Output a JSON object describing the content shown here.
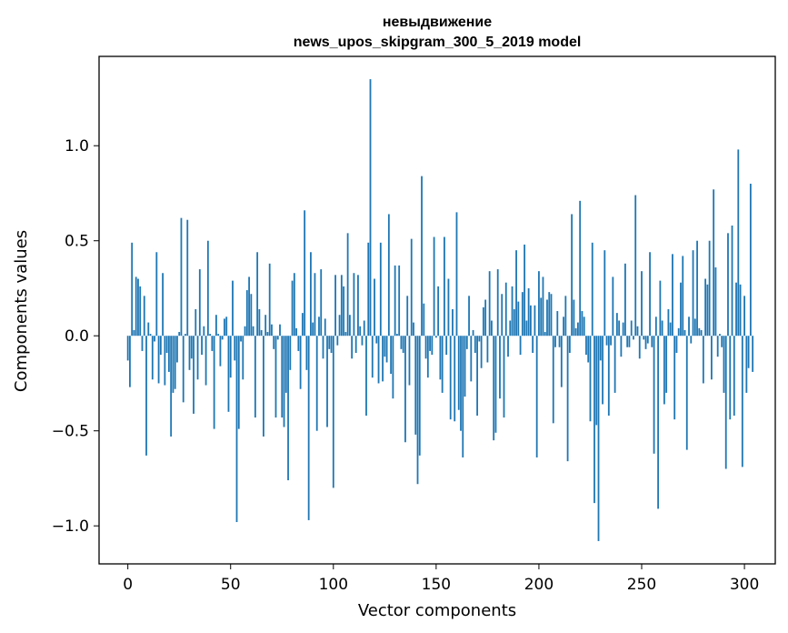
{
  "chart_data": {
    "type": "bar",
    "title_line1": "невыдвижение",
    "title_line2": "news_upos_skipgram_300_5_2019 model",
    "xlabel": "Vector components",
    "ylabel": "Components values",
    "xlim": [
      -14,
      315
    ],
    "ylim": [
      -1.2,
      1.47
    ],
    "xticks": [
      0,
      50,
      100,
      150,
      200,
      250,
      300
    ],
    "yticks": [
      -1.0,
      -0.5,
      0.0,
      0.5,
      1.0
    ],
    "ytick_labels": [
      "−1.0",
      "−0.5",
      "0.0",
      "0.5",
      "1.0"
    ],
    "color": "#1f77b4",
    "values": [
      -0.13,
      -0.27,
      0.49,
      0.03,
      0.31,
      0.3,
      0.26,
      -0.08,
      0.21,
      -0.63,
      0.07,
      0.01,
      -0.23,
      -0.03,
      0.44,
      -0.25,
      -0.1,
      0.33,
      -0.26,
      -0.09,
      -0.19,
      -0.53,
      -0.3,
      -0.28,
      -0.14,
      0.02,
      0.62,
      -0.35,
      0.01,
      0.61,
      -0.18,
      -0.12,
      -0.41,
      0.14,
      -0.23,
      0.35,
      -0.1,
      0.05,
      -0.26,
      0.5,
      0.01,
      -0.08,
      -0.49,
      0.11,
      0.01,
      -0.16,
      -0.02,
      0.09,
      0.1,
      -0.4,
      -0.22,
      0.29,
      -0.13,
      -0.98,
      -0.49,
      -0.03,
      -0.23,
      0.05,
      0.24,
      0.31,
      0.22,
      0.05,
      -0.43,
      0.44,
      0.14,
      0.03,
      -0.53,
      0.11,
      0.02,
      0.38,
      0.06,
      -0.07,
      -0.43,
      -0.02,
      0.06,
      -0.43,
      -0.48,
      -0.3,
      -0.76,
      -0.18,
      0.29,
      0.33,
      0.04,
      -0.08,
      -0.28,
      0.12,
      0.66,
      -0.18,
      -0.97,
      0.44,
      0.07,
      0.33,
      -0.5,
      0.1,
      0.35,
      -0.12,
      0.09,
      -0.48,
      -0.07,
      -0.09,
      -0.8,
      0.32,
      -0.05,
      0.11,
      0.32,
      0.26,
      0.02,
      0.54,
      0.11,
      -0.12,
      0.33,
      -0.09,
      0.32,
      0.05,
      -0.05,
      0.08,
      -0.42,
      0.49,
      1.35,
      -0.22,
      0.3,
      -0.04,
      -0.25,
      0.49,
      -0.24,
      -0.11,
      -0.14,
      0.64,
      -0.2,
      -0.33,
      0.37,
      0.01,
      0.37,
      -0.07,
      -0.09,
      -0.56,
      0.21,
      -0.26,
      0.51,
      0.07,
      -0.52,
      -0.78,
      -0.63,
      0.84,
      0.17,
      -0.12,
      -0.22,
      -0.08,
      -0.1,
      0.52,
      -0.01,
      0.26,
      -0.23,
      -0.3,
      0.52,
      -0.1,
      0.3,
      -0.44,
      0.14,
      -0.45,
      0.65,
      -0.39,
      -0.5,
      -0.64,
      -0.32,
      -0.07,
      0.21,
      -0.24,
      0.03,
      -0.09,
      -0.42,
      -0.03,
      -0.17,
      0.15,
      0.19,
      -0.14,
      0.34,
      0.08,
      -0.55,
      -0.51,
      0.35,
      -0.33,
      0.22,
      -0.43,
      0.28,
      -0.11,
      0.08,
      0.26,
      0.14,
      0.45,
      0.18,
      -0.1,
      0.23,
      0.48,
      0.08,
      0.25,
      0.16,
      -0.09,
      0.16,
      -0.64,
      0.34,
      0.2,
      0.31,
      0.02,
      0.19,
      0.23,
      0.22,
      -0.46,
      -0.06,
      0.13,
      -0.06,
      -0.27,
      0.1,
      0.21,
      -0.66,
      -0.09,
      0.64,
      0.19,
      0.04,
      0.07,
      0.71,
      0.13,
      0.1,
      -0.1,
      -0.14,
      -0.45,
      0.49,
      -0.88,
      -0.47,
      -1.08,
      -0.13,
      -0.36,
      0.45,
      -0.05,
      -0.42,
      -0.05,
      0.31,
      -0.3,
      0.12,
      0.08,
      -0.11,
      0.07,
      0.38,
      -0.06,
      -0.06,
      0.08,
      -0.02,
      0.74,
      0.05,
      -0.12,
      0.34,
      -0.02,
      -0.07,
      -0.04,
      0.44,
      -0.06,
      -0.62,
      0.1,
      -0.91,
      0.29,
      0.08,
      -0.36,
      -0.3,
      0.14,
      0.07,
      0.43,
      -0.44,
      -0.09,
      0.04,
      0.28,
      0.42,
      0.03,
      -0.6,
      0.1,
      -0.04,
      0.45,
      0.09,
      0.5,
      0.04,
      0.03,
      -0.25,
      0.3,
      0.27,
      0.5,
      -0.23,
      0.77,
      0.36,
      -0.11,
      0.01,
      -0.06,
      -0.3,
      -0.7,
      0.54,
      -0.44,
      0.58,
      -0.42,
      0.28,
      0.98,
      0.27,
      -0.69,
      0.21,
      -0.3,
      -0.17,
      0.8,
      -0.19
    ]
  }
}
